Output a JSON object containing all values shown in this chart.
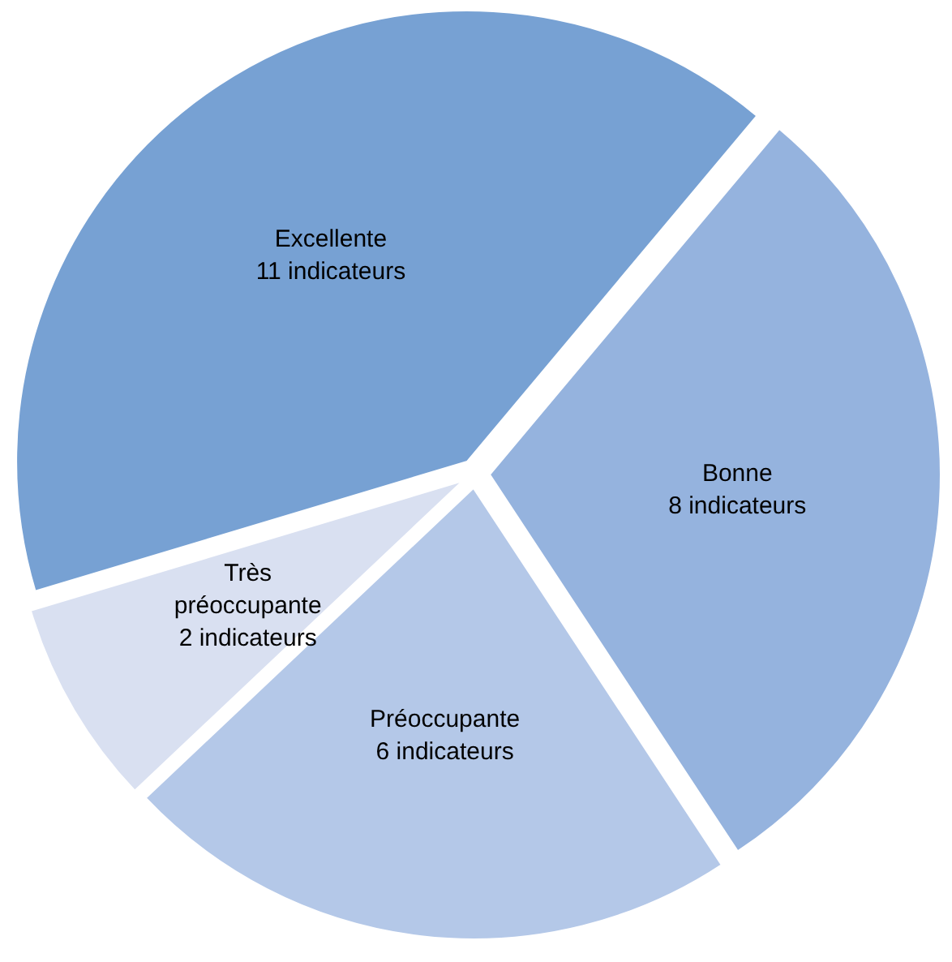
{
  "chart_data": {
    "type": "pie",
    "categories": [
      "Excellente",
      "Bonne",
      "Préoccupante",
      "Très préoccupante"
    ],
    "values": [
      11,
      8,
      6,
      2
    ],
    "colors": [
      "#77a1d3",
      "#95b3de",
      "#b4c8e8",
      "#d9e0f1"
    ],
    "value_labels": [
      "11 indicateurs",
      "8 indicateurs",
      "6 indicateurs",
      "2 indicateurs"
    ]
  }
}
